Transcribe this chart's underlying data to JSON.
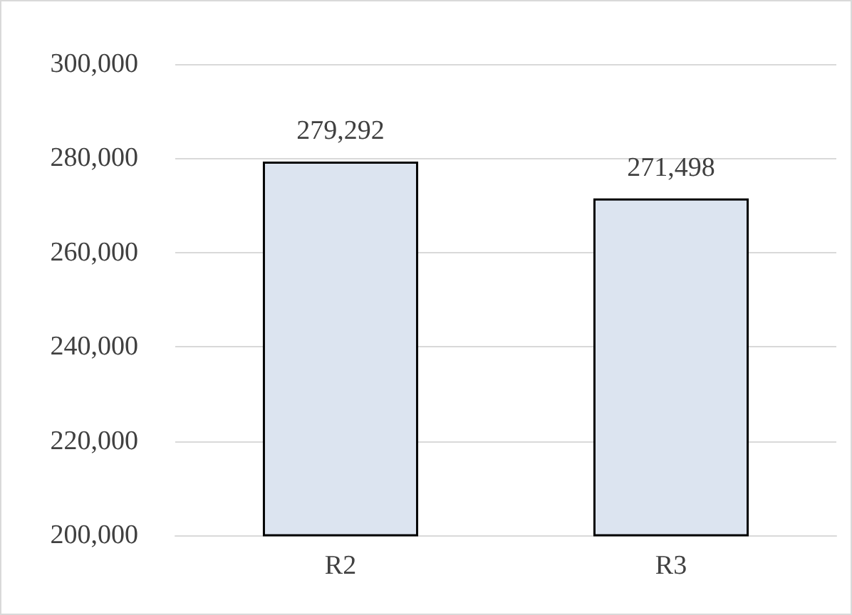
{
  "chart_data": {
    "type": "bar",
    "categories": [
      "R2",
      "R3"
    ],
    "values": [
      279292,
      271498
    ],
    "value_labels": [
      "279,292",
      "271,498"
    ],
    "color": "#dce4f0",
    "ylim": [
      200000,
      300000
    ],
    "yticks": [
      {
        "value": 200000,
        "label": "200,000"
      },
      {
        "value": 220000,
        "label": "220,000"
      },
      {
        "value": 240000,
        "label": "240,000"
      },
      {
        "value": 260000,
        "label": "260,000"
      },
      {
        "value": 280000,
        "label": "280,000"
      },
      {
        "value": 300000,
        "label": "300,000"
      }
    ],
    "grid": "y"
  }
}
